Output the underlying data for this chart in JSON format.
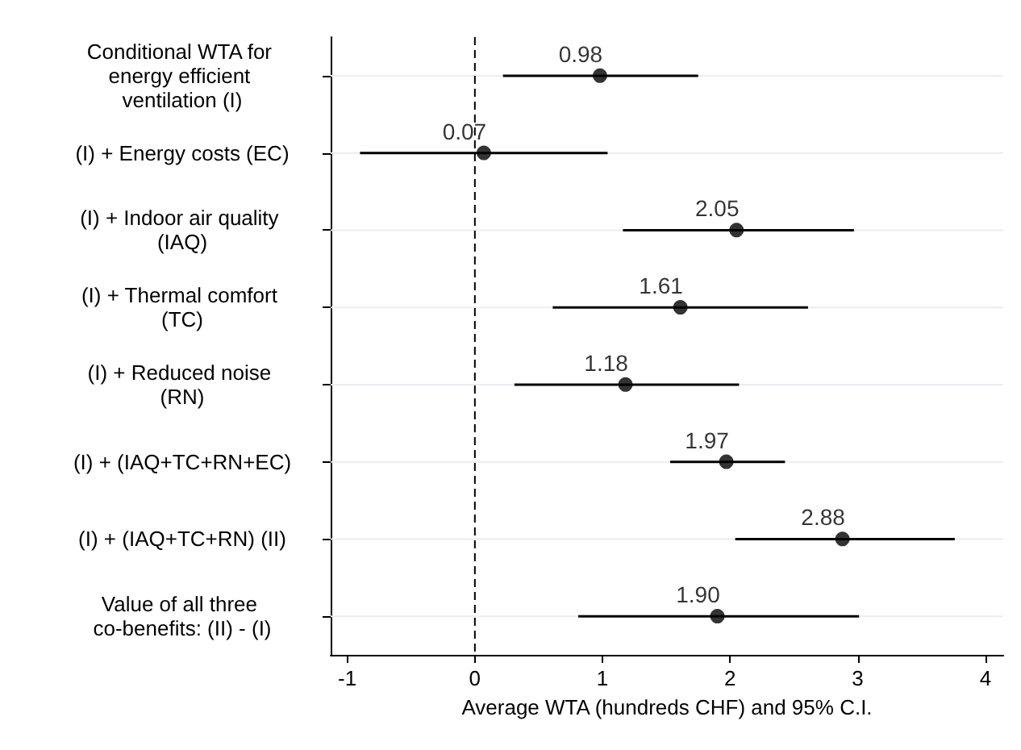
{
  "chart_data": {
    "type": "scatter",
    "orientation": "horizontal",
    "categories": [
      "Conditional WTA for energy efficient ventilation (I)",
      "(I) + Energy costs (EC)",
      "(I) + Indoor air quality (IAQ)",
      "(I) + Thermal comfort (TC)",
      "(I) + Reduced noise (RN)",
      "(I) + (IAQ+TC+RN+EC)",
      "(I) + (IAQ+TC+RN) (II)",
      "Value of all three co-benefits: (II) - (I)"
    ],
    "values": [
      0.98,
      0.07,
      2.05,
      1.61,
      1.18,
      1.97,
      2.88,
      1.9
    ],
    "value_labels": [
      "0.98",
      "0.07",
      "2.05",
      "1.61",
      "1.18",
      "1.97",
      "2.88",
      "1.90"
    ],
    "errors": [
      [
        0.22,
        1.75
      ],
      [
        -0.9,
        1.04
      ],
      [
        1.16,
        2.97
      ],
      [
        0.61,
        2.61
      ],
      [
        0.31,
        2.07
      ],
      [
        1.53,
        2.43
      ],
      [
        2.04,
        3.76
      ],
      [
        0.81,
        3.01
      ]
    ],
    "color": "#000000",
    "marker": "circle",
    "xlabel": "Average WTA (hundreds CHF) and 95% C.I.",
    "xlim": [
      -1.13,
      4.14
    ],
    "xticks": [
      -1,
      0,
      1,
      2,
      3,
      4
    ],
    "grid": "y",
    "ref_lines": [
      {
        "axis": "x",
        "value": 0,
        "line_style": "dashed",
        "color": "#000000"
      }
    ]
  }
}
